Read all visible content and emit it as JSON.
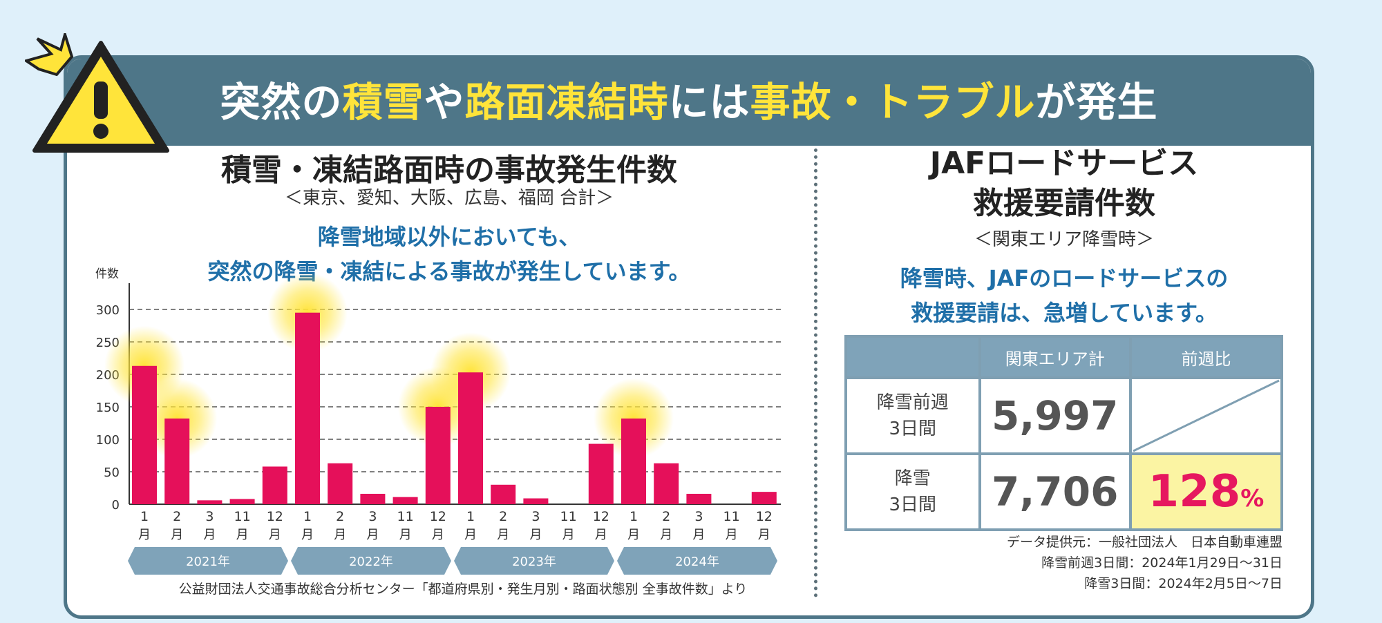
{
  "banner": {
    "p1": "突然の",
    "h1": "積雪",
    "p2": "や",
    "h2": "路面凍結時",
    "p3": "には",
    "h3": "事故・トラブル",
    "p4": "が発生"
  },
  "left": {
    "title": "積雪・凍結路面時の事故発生件数",
    "subtitle": "＜東京、愛知、大阪、広島、福岡 合計＞",
    "message_line1": "降雪地域以外においても、",
    "message_line2": "突然の降雪・凍結による事故が発生しています。",
    "source": "公益財団法人交通事故総合分析センター「都道府県別・発生月別・路面状態別 全事故件数」より"
  },
  "chart_data": {
    "type": "bar",
    "ylabel": "件数",
    "ylim": [
      0,
      300
    ],
    "yticks": [
      0,
      50,
      100,
      150,
      200,
      250,
      300
    ],
    "grid": true,
    "highlight_color": "#ffe43a",
    "bar_color": "#e5105a",
    "categories": [
      {
        "num": "1",
        "unit": "月"
      },
      {
        "num": "2",
        "unit": "月"
      },
      {
        "num": "3",
        "unit": "月"
      },
      {
        "num": "11",
        "unit": "月"
      },
      {
        "num": "12",
        "unit": "月"
      },
      {
        "num": "1",
        "unit": "月"
      },
      {
        "num": "2",
        "unit": "月"
      },
      {
        "num": "3",
        "unit": "月"
      },
      {
        "num": "11",
        "unit": "月"
      },
      {
        "num": "12",
        "unit": "月"
      },
      {
        "num": "1",
        "unit": "月"
      },
      {
        "num": "2",
        "unit": "月"
      },
      {
        "num": "3",
        "unit": "月"
      },
      {
        "num": "11",
        "unit": "月"
      },
      {
        "num": "12",
        "unit": "月"
      },
      {
        "num": "1",
        "unit": "月"
      },
      {
        "num": "2",
        "unit": "月"
      },
      {
        "num": "3",
        "unit": "月"
      },
      {
        "num": "11",
        "unit": "月"
      },
      {
        "num": "12",
        "unit": "月"
      }
    ],
    "values": [
      213,
      132,
      6,
      8,
      58,
      295,
      63,
      16,
      11,
      150,
      203,
      30,
      9,
      0,
      93,
      132,
      63,
      16,
      0,
      19
    ],
    "highlighted": [
      0,
      1,
      5,
      9,
      10,
      15
    ],
    "groups": [
      "2021年",
      "2022年",
      "2023年",
      "2024年"
    ]
  },
  "right": {
    "title_line1": "JAFロードサービス",
    "title_line2": "救援要請件数",
    "subtitle": "＜関東エリア降雪時＞",
    "message_line1": "降雪時、JAFのロードサービスの",
    "message_line2": "救援要請は、急増しています。",
    "table": {
      "col1": "関東エリア計",
      "col2": "前週比",
      "row1_label1": "降雪前週",
      "row1_label2": "3日間",
      "row1_value": "5,997",
      "row2_label1": "降雪",
      "row2_label2": "3日間",
      "row2_value": "7,706",
      "ratio_num": "128",
      "ratio_unit": "%"
    },
    "note1": "データ提供元：一般社団法人　日本自動車連盟",
    "note2": "降雪前週3日間：2024年1月29日～31日",
    "note3": "降雪3日間：2024年2月5日～7日"
  }
}
